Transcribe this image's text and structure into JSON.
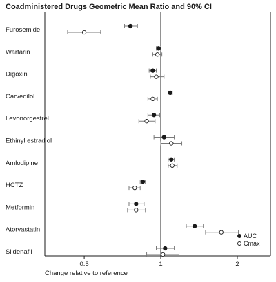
{
  "chart_data": {
    "type": "scatter",
    "headers": {
      "left": "Coadministered Drugs",
      "right": "Geometric Mean Ratio and 90% CI"
    },
    "xlabel": "Change relative to reference",
    "x_scale": "log",
    "x_ticks": [
      {
        "value": 0.5,
        "label": "0.5"
      },
      {
        "value": 1,
        "label": "1"
      },
      {
        "value": 2,
        "label": "2"
      }
    ],
    "xlim": [
      0.35,
      2.7
    ],
    "reference_line": 1,
    "legend": {
      "position": "bottom-right",
      "entries": [
        "AUC",
        "Cmax"
      ]
    },
    "series_style": {
      "AUC": "filled-circle",
      "Cmax": "open-circle"
    },
    "colors": {
      "ink": "#1a1a1a",
      "line": "#7a7a7a"
    },
    "drugs": [
      {
        "name": "Furosemide",
        "AUC": {
          "est": 0.76,
          "lo": 0.72,
          "hi": 0.81
        },
        "Cmax": {
          "est": 0.5,
          "lo": 0.43,
          "hi": 0.58
        }
      },
      {
        "name": "Warfarin",
        "AUC": {
          "est": 0.98,
          "lo": 0.96,
          "hi": 1.0
        },
        "Cmax": {
          "est": 0.97,
          "lo": 0.93,
          "hi": 1.01
        }
      },
      {
        "name": "Digoxin",
        "AUC": {
          "est": 0.93,
          "lo": 0.9,
          "hi": 0.96
        },
        "Cmax": {
          "est": 0.96,
          "lo": 0.91,
          "hi": 1.03
        }
      },
      {
        "name": "Carvedilol",
        "AUC": {
          "est": 1.09,
          "lo": 1.07,
          "hi": 1.11
        },
        "Cmax": {
          "est": 0.93,
          "lo": 0.89,
          "hi": 0.97
        }
      },
      {
        "name": "Levonorgestrel",
        "AUC": {
          "est": 0.94,
          "lo": 0.89,
          "hi": 0.99
        },
        "Cmax": {
          "est": 0.88,
          "lo": 0.82,
          "hi": 0.95
        }
      },
      {
        "name": "Ethinyl estradiol",
        "AUC": {
          "est": 1.03,
          "lo": 0.94,
          "hi": 1.13
        },
        "Cmax": {
          "est": 1.1,
          "lo": 1.0,
          "hi": 1.21
        }
      },
      {
        "name": "Amlodipine",
        "AUC": {
          "est": 1.1,
          "lo": 1.07,
          "hi": 1.13
        },
        "Cmax": {
          "est": 1.11,
          "lo": 1.07,
          "hi": 1.16
        }
      },
      {
        "name": "HCTZ",
        "AUC": {
          "est": 0.85,
          "lo": 0.83,
          "hi": 0.87
        },
        "Cmax": {
          "est": 0.79,
          "lo": 0.75,
          "hi": 0.83
        }
      },
      {
        "name": "Metformin",
        "AUC": {
          "est": 0.8,
          "lo": 0.75,
          "hi": 0.86
        },
        "Cmax": {
          "est": 0.8,
          "lo": 0.74,
          "hi": 0.87
        }
      },
      {
        "name": "Atorvastatin",
        "AUC": {
          "est": 1.36,
          "lo": 1.26,
          "hi": 1.47
        },
        "Cmax": {
          "est": 1.73,
          "lo": 1.5,
          "hi": 2.02
        }
      },
      {
        "name": "Sildenafil",
        "AUC": {
          "est": 1.04,
          "lo": 0.96,
          "hi": 1.13
        },
        "Cmax": {
          "est": 1.02,
          "lo": 0.88,
          "hi": 1.18
        }
      }
    ]
  }
}
